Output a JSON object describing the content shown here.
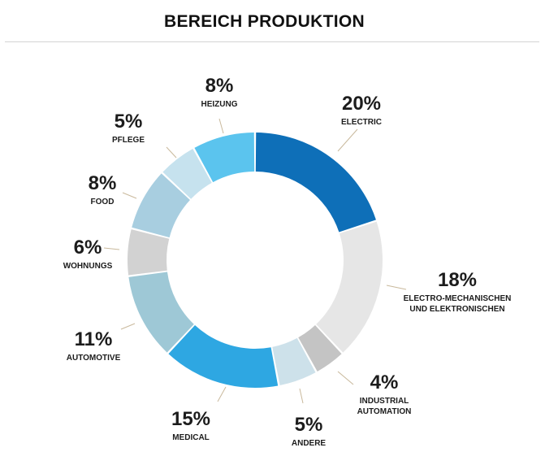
{
  "chart_data": {
    "type": "pie",
    "variant": "donut",
    "title": "BEREICH PRODUKTION",
    "slices": [
      {
        "label": "ELECTRIC",
        "value": 20,
        "display": "20%",
        "color": "#0e6fb8",
        "label_lines": [
          "ELECTRIC"
        ]
      },
      {
        "label": "ELECTRO-MECHANISCHEN UND ELEKTRONISCHEN",
        "value": 18,
        "display": "18%",
        "color": "#e6e6e6",
        "label_lines": [
          "ELECTRO-MECHANISCHEN",
          "UND ELEKTRONISCHEN"
        ]
      },
      {
        "label": "INDUSTRIAL AUTOMATION",
        "value": 4,
        "display": "4%",
        "color": "#c4c4c4",
        "label_lines": [
          "INDUSTRIAL",
          "AUTOMATION"
        ]
      },
      {
        "label": "ANDERE",
        "value": 5,
        "display": "5%",
        "color": "#cde1ea",
        "label_lines": [
          "ANDERE"
        ]
      },
      {
        "label": "MEDICAL",
        "value": 15,
        "display": "15%",
        "color": "#2ea7e2",
        "label_lines": [
          "MEDICAL"
        ]
      },
      {
        "label": "AUTOMOTIVE",
        "value": 11,
        "display": "11%",
        "color": "#9ec8d6",
        "label_lines": [
          "AUTOMOTIVE"
        ]
      },
      {
        "label": "WOHNUNGS",
        "value": 6,
        "display": "6%",
        "color": "#d2d2d2",
        "label_lines": [
          "WOHNUNGS"
        ]
      },
      {
        "label": "FOOD",
        "value": 8,
        "display": "8%",
        "color": "#a8cee0",
        "label_lines": [
          "FOOD"
        ]
      },
      {
        "label": "PFLEGE",
        "value": 5,
        "display": "5%",
        "color": "#c6e2ee",
        "label_lines": [
          "PFLEGE"
        ]
      },
      {
        "label": "HEIZUNG",
        "value": 8,
        "display": "8%",
        "color": "#5bc4ee",
        "label_lines": [
          "HEIZUNG"
        ]
      }
    ],
    "legend": "none",
    "leader_color": "#c9b99c"
  }
}
